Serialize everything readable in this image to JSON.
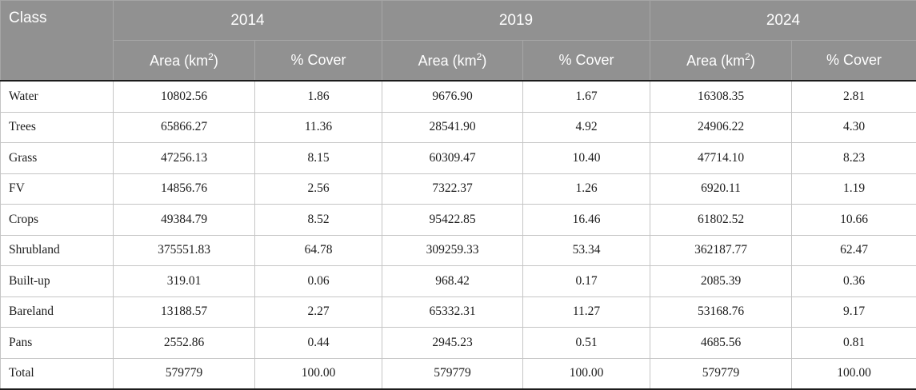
{
  "table": {
    "class_header": "Class",
    "year_groups": [
      {
        "year": "2014"
      },
      {
        "year": "2019"
      },
      {
        "year": "2024"
      }
    ],
    "sub_headers": {
      "area": "Area (km²)",
      "cover": "% Cover"
    },
    "rows": [
      {
        "class": "Water",
        "values": [
          "10802.56",
          "1.86",
          "9676.90",
          "1.67",
          "16308.35",
          "2.81"
        ]
      },
      {
        "class": "Trees",
        "values": [
          "65866.27",
          "11.36",
          "28541.90",
          "4.92",
          "24906.22",
          "4.30"
        ]
      },
      {
        "class": "Grass",
        "values": [
          "47256.13",
          "8.15",
          "60309.47",
          "10.40",
          "47714.10",
          "8.23"
        ]
      },
      {
        "class": "FV",
        "values": [
          "14856.76",
          "2.56",
          "7322.37",
          "1.26",
          "6920.11",
          "1.19"
        ]
      },
      {
        "class": "Crops",
        "values": [
          "49384.79",
          "8.52",
          "95422.85",
          "16.46",
          "61802.52",
          "10.66"
        ]
      },
      {
        "class": "Shrubland",
        "values": [
          "375551.83",
          "64.78",
          "309259.33",
          "53.34",
          "362187.77",
          "62.47"
        ]
      },
      {
        "class": "Built-up",
        "values": [
          "319.01",
          "0.06",
          "968.42",
          "0.17",
          "2085.39",
          "0.36"
        ]
      },
      {
        "class": "Bareland",
        "values": [
          "13188.57",
          "2.27",
          "65332.31",
          "11.27",
          "53168.76",
          "9.17"
        ]
      },
      {
        "class": "Pans",
        "values": [
          "2552.86",
          "0.44",
          "2945.23",
          "0.51",
          "4685.56",
          "0.81"
        ]
      },
      {
        "class": "Total",
        "values": [
          "579779",
          "100.00",
          "579779",
          "100.00",
          "579779",
          "100.00"
        ]
      }
    ]
  },
  "colors": {
    "header_bg": "#919191",
    "header_divider": "#a6a6a6",
    "header_text": "#ffffff",
    "body_border": "#c5c5c5",
    "strong_border": "#1c1c1c",
    "body_text": "#1c1c1c"
  }
}
